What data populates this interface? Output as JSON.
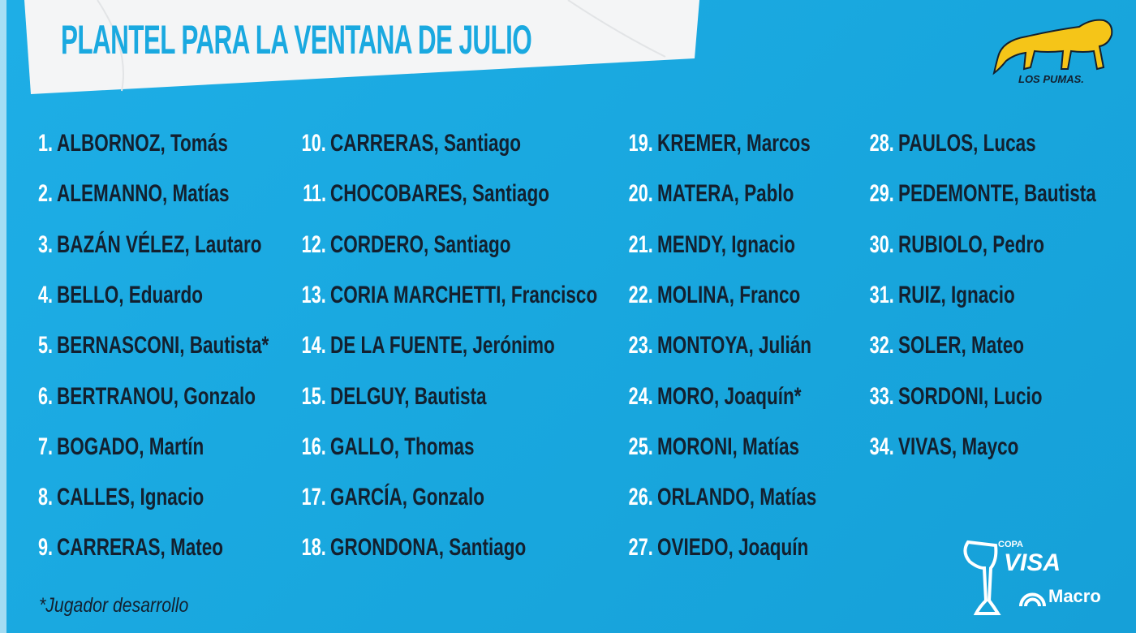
{
  "title": "PLANTEL PARA LA VENTANA DE JULIO",
  "colors": {
    "background": "#1aa9e0",
    "text": "#13202f",
    "logo": "#f5c518"
  },
  "logos": {
    "pumas": "LOS PUMAS.",
    "copa": "COPA",
    "visa": "VISA",
    "macro": "Macro"
  },
  "footnote": "*Jugador desarrollo",
  "columns": [
    [
      {
        "num": "1.",
        "name": "ALBORNOZ, Tomás"
      },
      {
        "num": "2.",
        "name": "ALEMANNO, Matías"
      },
      {
        "num": "3.",
        "name": "BAZÁN VÉLEZ, Lautaro"
      },
      {
        "num": "4.",
        "name": "BELLO, Eduardo"
      },
      {
        "num": "5.",
        "name": "BERNASCONI, Bautista*"
      },
      {
        "num": "6.",
        "name": "BERTRANOU, Gonzalo"
      },
      {
        "num": "7.",
        "name": "BOGADO, Martín"
      },
      {
        "num": "8.",
        "name": "CALLES, Ignacio"
      },
      {
        "num": "9.",
        "name": "CARRERAS, Mateo"
      }
    ],
    [
      {
        "num": "10.",
        "name": "CARRERAS, Santiago"
      },
      {
        "num": "11.",
        "name": "CHOCOBARES, Santiago"
      },
      {
        "num": "12.",
        "name": "CORDERO, Santiago"
      },
      {
        "num": "13.",
        "name": "CORIA MARCHETTI, Francisco"
      },
      {
        "num": "14.",
        "name": "DE LA FUENTE, Jerónimo"
      },
      {
        "num": "15.",
        "name": "DELGUY, Bautista"
      },
      {
        "num": "16.",
        "name": "GALLO, Thomas"
      },
      {
        "num": "17.",
        "name": "GARCÍA, Gonzalo"
      },
      {
        "num": "18.",
        "name": "GRONDONA, Santiago"
      }
    ],
    [
      {
        "num": "19.",
        "name": "KREMER, Marcos"
      },
      {
        "num": "20.",
        "name": "MATERA, Pablo"
      },
      {
        "num": "21.",
        "name": "MENDY, Ignacio"
      },
      {
        "num": "22.",
        "name": "MOLINA, Franco"
      },
      {
        "num": "23.",
        "name": "MONTOYA, Julián"
      },
      {
        "num": "24.",
        "name": "MORO, Joaquín*"
      },
      {
        "num": "25.",
        "name": "MORONI, Matías"
      },
      {
        "num": "26.",
        "name": "ORLANDO, Matías"
      },
      {
        "num": "27.",
        "name": "OVIEDO, Joaquín"
      }
    ],
    [
      {
        "num": "28.",
        "name": "PAULOS, Lucas"
      },
      {
        "num": "29.",
        "name": "PEDEMONTE, Bautista"
      },
      {
        "num": "30.",
        "name": "RUBIOLO, Pedro"
      },
      {
        "num": "31.",
        "name": "RUIZ, Ignacio"
      },
      {
        "num": "32.",
        "name": "SOLER, Mateo"
      },
      {
        "num": "33.",
        "name": "SORDONI, Lucio"
      },
      {
        "num": "34.",
        "name": "VIVAS, Mayco"
      }
    ]
  ]
}
